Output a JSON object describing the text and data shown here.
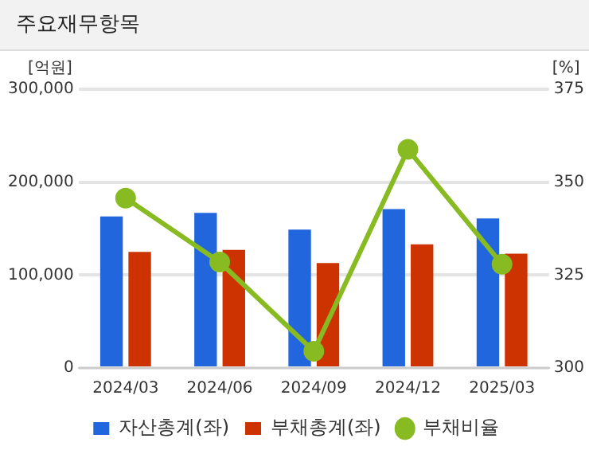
{
  "chart_data": {
    "type": "bar",
    "title": "주요재무항목",
    "ylabel": "[억원]",
    "y2label": "[%]",
    "categories": [
      "2024/03",
      "2024/06",
      "2024/09",
      "2024/12",
      "2025/03"
    ],
    "series": [
      {
        "name": "자산총계(좌)",
        "color": "#2266dd",
        "values": [
          163000,
          167000,
          149000,
          171000,
          161000
        ]
      },
      {
        "name": "부채총계(좌)",
        "color": "#cc3300",
        "values": [
          125000,
          127000,
          113000,
          133000,
          123000
        ]
      },
      {
        "name": "부채비율",
        "type": "line",
        "axis": "y2",
        "color": "#88bb22",
        "values": [
          345.7,
          328.5,
          304.5,
          358.8,
          327.9
        ]
      }
    ],
    "ylim": [
      0,
      300000
    ],
    "yticks": [
      0,
      {
        "value": 100000,
        "label": "100,000"
      },
      {
        "value": 200000,
        "label": "200,000"
      },
      {
        "value": 300000,
        "label": "300,000"
      }
    ],
    "y2lim": [
      300,
      375
    ],
    "y2ticks": [
      300,
      325,
      350,
      375
    ],
    "grid": "y",
    "legend": "bottom",
    "marker": "circle"
  }
}
